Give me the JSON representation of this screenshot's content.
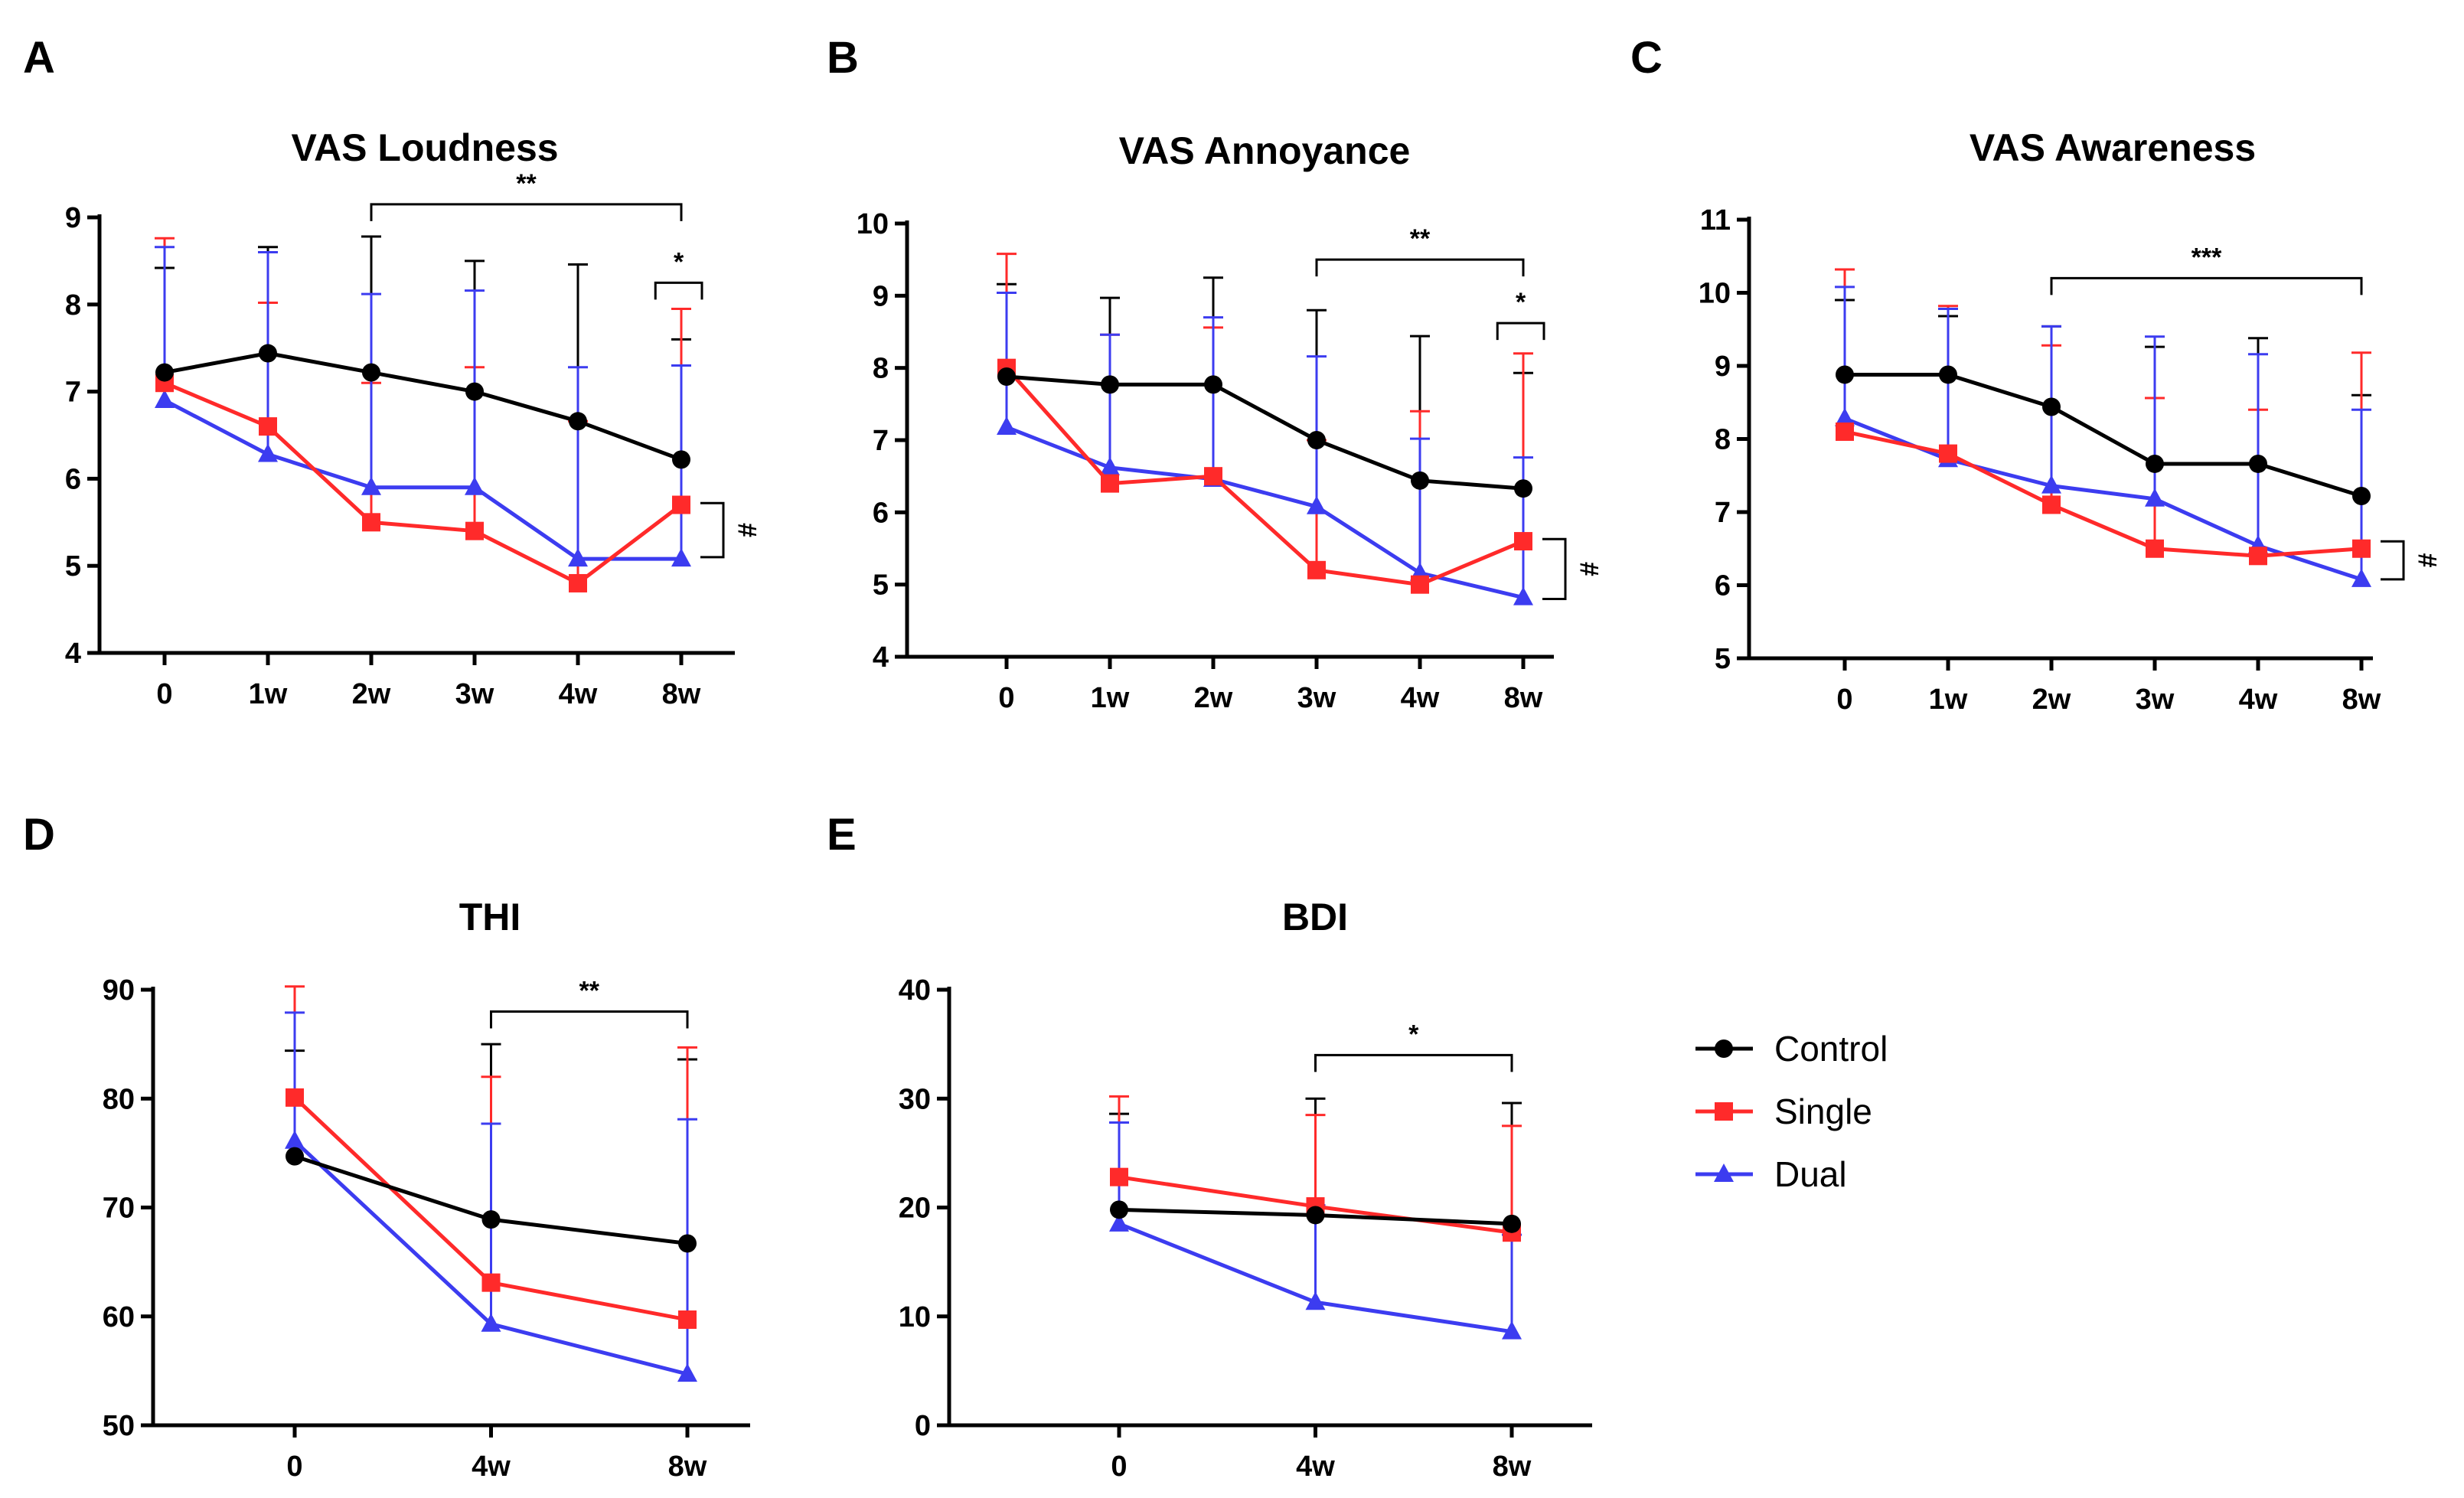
{
  "series_style": [
    {
      "name": "Control",
      "color": "#000000",
      "marker": "circle"
    },
    {
      "name": "Single",
      "color": "#ff2a2a",
      "marker": "square"
    },
    {
      "name": "Dual",
      "color": "#3c3cf0",
      "marker": "triangle"
    }
  ],
  "chart_data": [
    {
      "panel": "A",
      "type": "line",
      "title": "VAS Loudness",
      "categories": [
        "0",
        "1w",
        "2w",
        "3w",
        "4w",
        "8w"
      ],
      "ylim": [
        4,
        9
      ],
      "yticks": [
        "4",
        "5",
        "6",
        "7",
        "8",
        "9"
      ],
      "series": [
        {
          "name": "Control",
          "values": [
            7.22,
            7.44,
            7.22,
            7.0,
            6.66,
            6.22
          ],
          "err": [
            1.2,
            1.22,
            1.56,
            1.5,
            1.8,
            1.38
          ]
        },
        {
          "name": "Single",
          "values": [
            7.1,
            6.6,
            5.5,
            5.4,
            4.8,
            5.7
          ],
          "err": [
            1.66,
            1.42,
            1.6,
            1.88,
            1.86,
            2.25
          ]
        },
        {
          "name": "Dual",
          "values": [
            6.9,
            6.28,
            5.9,
            5.9,
            5.08,
            5.08
          ],
          "err": [
            1.76,
            2.32,
            2.22,
            2.26,
            2.2,
            2.22
          ]
        }
      ],
      "annotations": [
        {
          "type": "bracket",
          "from": 2,
          "to": 5,
          "level": 9.15,
          "label": "**"
        },
        {
          "type": "bracket",
          "from": 4.75,
          "to": 5.2,
          "level": 8.25,
          "label": "*"
        },
        {
          "type": "side",
          "from": 5.1,
          "to": 5.72,
          "label": "#"
        }
      ]
    },
    {
      "panel": "B",
      "type": "line",
      "title": "VAS Annoyance",
      "categories": [
        "0",
        "1w",
        "2w",
        "3w",
        "4w",
        "8w"
      ],
      "ylim": [
        4,
        10
      ],
      "yticks": [
        "4",
        "5",
        "6",
        "7",
        "8",
        "9",
        "10"
      ],
      "series": [
        {
          "name": "Control",
          "values": [
            7.88,
            7.77,
            7.77,
            7.0,
            6.44,
            6.33
          ],
          "err": [
            1.28,
            1.2,
            1.48,
            1.8,
            2.0,
            1.6
          ]
        },
        {
          "name": "Single",
          "values": [
            8.0,
            6.4,
            6.5,
            5.2,
            5.0,
            5.6
          ],
          "err": [
            1.58,
            2.06,
            2.06,
            1.8,
            2.4,
            2.6
          ]
        },
        {
          "name": "Dual",
          "values": [
            7.18,
            6.62,
            6.46,
            6.08,
            5.16,
            4.82
          ],
          "err": [
            1.86,
            1.84,
            2.24,
            2.08,
            1.86,
            1.94
          ]
        }
      ],
      "annotations": [
        {
          "type": "bracket",
          "from": 3,
          "to": 5,
          "level": 9.5,
          "label": "**"
        },
        {
          "type": "bracket",
          "from": 4.75,
          "to": 5.2,
          "level": 8.62,
          "label": "*"
        },
        {
          "type": "side",
          "from": 4.8,
          "to": 5.63,
          "label": "#"
        }
      ]
    },
    {
      "panel": "C",
      "type": "line",
      "title": "VAS Awareness",
      "categories": [
        "0",
        "1w",
        "2w",
        "3w",
        "4w",
        "8w"
      ],
      "ylim": [
        5,
        11
      ],
      "yticks": [
        "5",
        "6",
        "7",
        "8",
        "9",
        "10",
        "11"
      ],
      "series": [
        {
          "name": "Control",
          "values": [
            8.88,
            8.88,
            8.44,
            7.66,
            7.66,
            7.22
          ],
          "err": [
            1.02,
            0.8,
            1.1,
            1.6,
            1.72,
            1.38
          ]
        },
        {
          "name": "Single",
          "values": [
            8.1,
            7.8,
            7.1,
            6.5,
            6.4,
            6.5
          ],
          "err": [
            2.22,
            2.02,
            2.18,
            2.06,
            2.0,
            2.68
          ]
        },
        {
          "name": "Dual",
          "values": [
            8.28,
            7.72,
            7.36,
            7.18,
            6.54,
            6.08
          ],
          "err": [
            1.8,
            2.06,
            2.18,
            2.22,
            2.62,
            2.32
          ]
        }
      ],
      "annotations": [
        {
          "type": "bracket",
          "from": 2,
          "to": 5,
          "level": 10.2,
          "label": "***"
        },
        {
          "type": "side",
          "from": 6.08,
          "to": 6.6,
          "label": "#"
        }
      ]
    },
    {
      "panel": "D",
      "type": "line",
      "title": "THI",
      "categories": [
        "0",
        "4w",
        "8w"
      ],
      "ylim": [
        50,
        90
      ],
      "yticks": [
        "50",
        "60",
        "70",
        "80",
        "90"
      ],
      "series": [
        {
          "name": "Control",
          "values": [
            74.7,
            68.9,
            66.7
          ],
          "err": [
            9.7,
            16.1,
            16.9
          ]
        },
        {
          "name": "Single",
          "values": [
            80.1,
            63.1,
            59.7
          ],
          "err": [
            10.2,
            18.9,
            25.0
          ]
        },
        {
          "name": "Dual",
          "values": [
            76.1,
            59.3,
            54.7
          ],
          "err": [
            11.8,
            18.4,
            23.4
          ]
        }
      ],
      "annotations": [
        {
          "type": "bracket",
          "from": 1,
          "to": 2,
          "level": 88.0,
          "label": "**"
        }
      ]
    },
    {
      "panel": "E",
      "type": "line",
      "title": "BDI",
      "categories": [
        "0",
        "4w",
        "8w"
      ],
      "ylim": [
        0,
        40
      ],
      "yticks": [
        "0",
        "10",
        "20",
        "30",
        "40"
      ],
      "series": [
        {
          "name": "Control",
          "values": [
            19.8,
            19.3,
            18.5
          ],
          "err": [
            8.8,
            10.7,
            11.1
          ]
        },
        {
          "name": "Single",
          "values": [
            22.8,
            20.1,
            17.7
          ],
          "err": [
            7.4,
            8.4,
            9.8
          ]
        },
        {
          "name": "Dual",
          "values": [
            18.5,
            11.3,
            8.6
          ],
          "err": [
            9.3,
            8.9,
            8.9
          ]
        }
      ],
      "annotations": [
        {
          "type": "bracket",
          "from": 1,
          "to": 2,
          "level": 34.0,
          "label": "*"
        }
      ]
    }
  ]
}
